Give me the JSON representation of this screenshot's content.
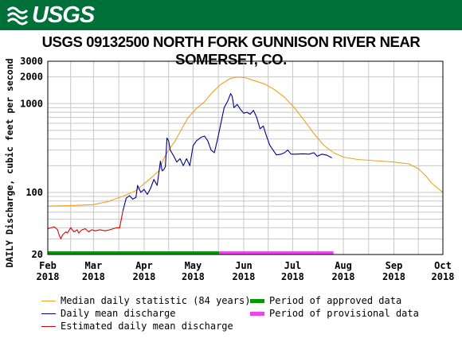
{
  "header": {
    "logo_text": "USGS"
  },
  "chart_data": {
    "type": "line",
    "title": "USGS 09132500 NORTH FORK GUNNISON RIVER NEAR SOMERSET, CO.",
    "ylabel": "DAILY Discharge, cubic feet per second",
    "y_scale": "log",
    "ylim": [
      20,
      3000
    ],
    "y_ticks": [
      "20",
      "100",
      "1000",
      "2000",
      "3000"
    ],
    "x_ticks": [
      {
        "month": "Feb",
        "year": "2018",
        "date": "2018-02-01"
      },
      {
        "month": "Mar",
        "year": "2018",
        "date": "2018-03-01"
      },
      {
        "month": "Apr",
        "year": "2018",
        "date": "2018-04-01"
      },
      {
        "month": "May",
        "year": "2018",
        "date": "2018-05-01"
      },
      {
        "month": "Jun",
        "year": "2018",
        "date": "2018-06-01"
      },
      {
        "month": "Jul",
        "year": "2018",
        "date": "2018-07-01"
      },
      {
        "month": "Aug",
        "year": "2018",
        "date": "2018-08-01"
      },
      {
        "month": "Sep",
        "year": "2018",
        "date": "2018-09-01"
      },
      {
        "month": "Oct",
        "year": "2018",
        "date": "2018-10-01"
      }
    ],
    "xlim": [
      "2018-02-01",
      "2018-10-01"
    ],
    "grid": true,
    "colors": {
      "median": "#f0a020",
      "daily": "#00008b",
      "estimated": "#e00000",
      "approved": "#009a00",
      "provisional": "#ee44ee",
      "grid": "#c8c8c8"
    },
    "series": [
      {
        "name": "Median daily statistic (84 years)",
        "key": "median",
        "points": [
          [
            "2018-02-01",
            70
          ],
          [
            "2018-02-15",
            71
          ],
          [
            "2018-03-01",
            73
          ],
          [
            "2018-03-10",
            79
          ],
          [
            "2018-03-20",
            92
          ],
          [
            "2018-03-27",
            105
          ],
          [
            "2018-04-01",
            125
          ],
          [
            "2018-04-06",
            150
          ],
          [
            "2018-04-10",
            175
          ],
          [
            "2018-04-13",
            240
          ],
          [
            "2018-04-16",
            300
          ],
          [
            "2018-04-20",
            380
          ],
          [
            "2018-04-24",
            520
          ],
          [
            "2018-04-28",
            700
          ],
          [
            "2018-05-03",
            880
          ],
          [
            "2018-05-08",
            1050
          ],
          [
            "2018-05-13",
            1350
          ],
          [
            "2018-05-18",
            1650
          ],
          [
            "2018-05-24",
            1930
          ],
          [
            "2018-05-28",
            1990
          ],
          [
            "2018-06-02",
            1960
          ],
          [
            "2018-06-08",
            1800
          ],
          [
            "2018-06-14",
            1660
          ],
          [
            "2018-06-20",
            1430
          ],
          [
            "2018-06-26",
            1180
          ],
          [
            "2018-07-02",
            900
          ],
          [
            "2018-07-08",
            650
          ],
          [
            "2018-07-14",
            460
          ],
          [
            "2018-07-20",
            340
          ],
          [
            "2018-07-26",
            280
          ],
          [
            "2018-08-01",
            250
          ],
          [
            "2018-08-10",
            235
          ],
          [
            "2018-08-20",
            228
          ],
          [
            "2018-09-01",
            220
          ],
          [
            "2018-09-10",
            210
          ],
          [
            "2018-09-16",
            185
          ],
          [
            "2018-09-21",
            150
          ],
          [
            "2018-09-24",
            128
          ],
          [
            "2018-09-27",
            115
          ],
          [
            "2018-10-01",
            100
          ]
        ]
      },
      {
        "name": "Daily mean discharge",
        "key": "daily",
        "points": [
          [
            "2018-03-19",
            62
          ],
          [
            "2018-03-21",
            86
          ],
          [
            "2018-03-23",
            92
          ],
          [
            "2018-03-25",
            84
          ],
          [
            "2018-03-27",
            88
          ],
          [
            "2018-03-28",
            120
          ],
          [
            "2018-03-30",
            100
          ],
          [
            "2018-04-01",
            108
          ],
          [
            "2018-04-03",
            95
          ],
          [
            "2018-04-05",
            112
          ],
          [
            "2018-04-07",
            140
          ],
          [
            "2018-04-09",
            120
          ],
          [
            "2018-04-11",
            225
          ],
          [
            "2018-04-12",
            175
          ],
          [
            "2018-04-13",
            180
          ],
          [
            "2018-04-14",
            195
          ],
          [
            "2018-04-15",
            410
          ],
          [
            "2018-04-16",
            380
          ],
          [
            "2018-04-17",
            300
          ],
          [
            "2018-04-19",
            260
          ],
          [
            "2018-04-21",
            220
          ],
          [
            "2018-04-23",
            240
          ],
          [
            "2018-04-25",
            200
          ],
          [
            "2018-04-27",
            240
          ],
          [
            "2018-04-29",
            200
          ],
          [
            "2018-05-01",
            335
          ],
          [
            "2018-05-03",
            380
          ],
          [
            "2018-05-06",
            420
          ],
          [
            "2018-05-08",
            430
          ],
          [
            "2018-05-10",
            380
          ],
          [
            "2018-05-12",
            300
          ],
          [
            "2018-05-14",
            280
          ],
          [
            "2018-05-16",
            400
          ],
          [
            "2018-05-18",
            600
          ],
          [
            "2018-05-20",
            900
          ],
          [
            "2018-05-22",
            1050
          ],
          [
            "2018-05-24",
            1300
          ],
          [
            "2018-05-25",
            1200
          ],
          [
            "2018-05-26",
            900
          ],
          [
            "2018-05-28",
            980
          ],
          [
            "2018-05-30",
            860
          ],
          [
            "2018-06-01",
            780
          ],
          [
            "2018-06-03",
            800
          ],
          [
            "2018-06-05",
            760
          ],
          [
            "2018-06-07",
            840
          ],
          [
            "2018-06-09",
            700
          ],
          [
            "2018-06-11",
            520
          ],
          [
            "2018-06-13",
            560
          ],
          [
            "2018-06-15",
            430
          ],
          [
            "2018-06-17",
            340
          ],
          [
            "2018-06-19",
            300
          ],
          [
            "2018-06-21",
            265
          ],
          [
            "2018-06-24",
            270
          ],
          [
            "2018-06-26",
            280
          ],
          [
            "2018-06-28",
            300
          ],
          [
            "2018-06-30",
            270
          ],
          [
            "2018-07-03",
            270
          ],
          [
            "2018-07-07",
            272
          ],
          [
            "2018-07-11",
            270
          ],
          [
            "2018-07-14",
            280
          ],
          [
            "2018-07-16",
            255
          ],
          [
            "2018-07-19",
            270
          ],
          [
            "2018-07-22",
            262
          ],
          [
            "2018-07-25",
            245
          ]
        ]
      },
      {
        "name": "Estimated daily mean discharge",
        "key": "estimated",
        "points": [
          [
            "2018-02-01",
            39
          ],
          [
            "2018-02-03",
            40
          ],
          [
            "2018-02-05",
            41
          ],
          [
            "2018-02-07",
            38
          ],
          [
            "2018-02-08",
            33
          ],
          [
            "2018-02-09",
            30
          ],
          [
            "2018-02-10",
            33
          ],
          [
            "2018-02-12",
            36
          ],
          [
            "2018-02-13",
            35
          ],
          [
            "2018-02-15",
            40
          ],
          [
            "2018-02-17",
            36
          ],
          [
            "2018-02-19",
            38
          ],
          [
            "2018-02-20",
            35
          ],
          [
            "2018-02-22",
            38
          ],
          [
            "2018-02-24",
            39
          ],
          [
            "2018-02-26",
            36
          ],
          [
            "2018-02-28",
            38
          ],
          [
            "2018-03-02",
            37
          ],
          [
            "2018-03-05",
            38
          ],
          [
            "2018-03-08",
            37
          ],
          [
            "2018-03-11",
            38
          ],
          [
            "2018-03-13",
            39
          ],
          [
            "2018-03-15",
            40
          ],
          [
            "2018-03-17",
            40
          ],
          [
            "2018-03-19",
            62
          ]
        ]
      }
    ],
    "periods": [
      {
        "name": "Period of approved data",
        "key": "approved",
        "start": "2018-02-01",
        "end": "2018-05-17"
      },
      {
        "name": "Period of provisional data",
        "key": "provisional",
        "start": "2018-05-17",
        "end": "2018-07-26"
      }
    ]
  },
  "legend": {
    "median_label": "Median daily statistic (84 years)",
    "daily_label": "Daily mean discharge",
    "estimated_label": "Estimated daily mean discharge",
    "approved_label": "Period of approved data",
    "provisional_label": "Period of provisional data"
  }
}
